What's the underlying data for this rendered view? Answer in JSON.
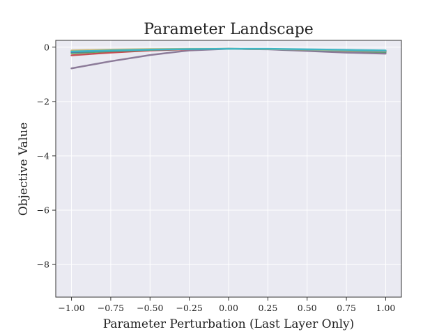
{
  "chart_data": {
    "type": "line",
    "title": "Parameter Landscape",
    "xlabel": "Parameter Perturbation (Last Layer Only)",
    "ylabel": "Objective Value",
    "xlim": [
      -1.1,
      1.1
    ],
    "ylim": [
      -9.2,
      0.25
    ],
    "xticks": [
      -1.0,
      -0.75,
      -0.5,
      -0.25,
      0.0,
      0.25,
      0.5,
      0.75,
      1.0
    ],
    "xtick_labels": [
      "−1.00",
      "−0.75",
      "−0.50",
      "−0.25",
      "0.00",
      "0.25",
      "0.50",
      "0.75",
      "1.00"
    ],
    "yticks": [
      0,
      -2,
      -4,
      -6,
      -8
    ],
    "ytick_labels": [
      "0",
      "−2",
      "−4",
      "−6",
      "−8"
    ],
    "grid": true,
    "background": "#eaeaf2",
    "grid_color": "#ffffff",
    "x": [
      -1.0,
      -0.75,
      -0.5,
      -0.25,
      0.0,
      0.25,
      0.5,
      0.75,
      1.0
    ],
    "series": [
      {
        "color": "#8c7b99",
        "values": [
          -0.78,
          -0.52,
          -0.29,
          -0.12,
          -0.06,
          -0.08,
          -0.14,
          -0.2,
          -0.24
        ]
      },
      {
        "color": "#c44e52",
        "values": [
          -0.3,
          -0.2,
          -0.12,
          -0.08,
          -0.06,
          -0.07,
          -0.1,
          -0.14,
          -0.18
        ]
      },
      {
        "color": "#55a868",
        "values": [
          -0.22,
          -0.15,
          -0.1,
          -0.07,
          -0.06,
          -0.07,
          -0.1,
          -0.14,
          -0.18
        ]
      },
      {
        "color": "#4c72b0",
        "values": [
          -0.18,
          -0.13,
          -0.09,
          -0.07,
          -0.06,
          -0.07,
          -0.1,
          -0.13,
          -0.16
        ]
      },
      {
        "color": "#ccb974",
        "values": [
          -0.12,
          -0.09,
          -0.07,
          -0.06,
          -0.06,
          -0.07,
          -0.09,
          -0.12,
          -0.14
        ]
      },
      {
        "color": "#3fb6c4",
        "values": [
          -0.16,
          -0.12,
          -0.09,
          -0.07,
          -0.06,
          -0.06,
          -0.08,
          -0.1,
          -0.12
        ]
      }
    ]
  }
}
